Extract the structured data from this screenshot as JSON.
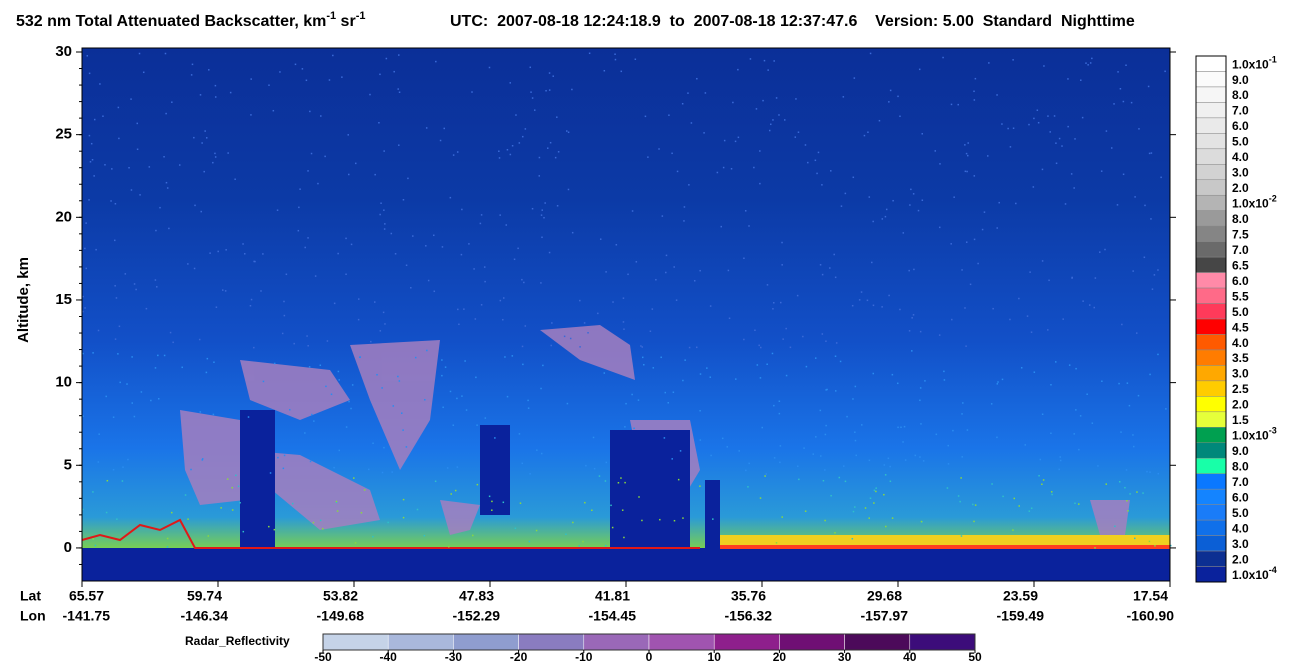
{
  "chart_data": {
    "type": "heatmap",
    "title": {
      "main": "532 nm Total Attenuated Backscatter, km",
      "sup1": "-1",
      "mid": " sr",
      "sup2": "-1"
    },
    "subtitle": "UTC:  2007-08-18 12:24:18.9  to  2007-08-18 12:37:47.6    Version: 5.00  Standard  Nighttime",
    "ylabel": "Altitude, km",
    "ylim": [
      -2,
      30
    ],
    "yticks": [
      0,
      5,
      10,
      15,
      20,
      25,
      30
    ],
    "lat_label": "Lat",
    "lon_label": "Lon",
    "lat": [
      "65.57",
      "59.74",
      "53.82",
      "47.83",
      "41.81",
      "35.76",
      "29.68",
      "23.59",
      "17.54"
    ],
    "lon": [
      "-141.75",
      "-146.34",
      "-149.68",
      "-152.29",
      "-154.45",
      "-156.32",
      "-157.97",
      "-159.49",
      "-160.90"
    ],
    "colorbar": [
      {
        "text": "1.0x10",
        "sup": "-1",
        "color": "#ffffff"
      },
      {
        "text": "9.0",
        "color": "#fbfbfb"
      },
      {
        "text": "8.0",
        "color": "#f6f6f6"
      },
      {
        "text": "7.0",
        "color": "#f0f0f0"
      },
      {
        "text": "6.0",
        "color": "#eaeaea"
      },
      {
        "text": "5.0",
        "color": "#e3e3e3"
      },
      {
        "text": "4.0",
        "color": "#dcdcdc"
      },
      {
        "text": "3.0",
        "color": "#d2d2d2"
      },
      {
        "text": "2.0",
        "color": "#c8c8c8"
      },
      {
        "text": "1.0x10",
        "sup": "-2",
        "color": "#b4b4b4"
      },
      {
        "text": "8.0",
        "color": "#9a9a9a"
      },
      {
        "text": "7.5",
        "color": "#858585"
      },
      {
        "text": "7.0",
        "color": "#6a6a6a"
      },
      {
        "text": "6.5",
        "color": "#464646"
      },
      {
        "text": "6.0",
        "color": "#ff8aa8"
      },
      {
        "text": "5.5",
        "color": "#ff6a88"
      },
      {
        "text": "5.0",
        "color": "#ff3a5a"
      },
      {
        "text": "4.5",
        "color": "#ff0000"
      },
      {
        "text": "4.0",
        "color": "#ff5a00"
      },
      {
        "text": "3.5",
        "color": "#ff7c00"
      },
      {
        "text": "3.0",
        "color": "#ffa800"
      },
      {
        "text": "2.5",
        "color": "#ffcc00"
      },
      {
        "text": "2.0",
        "color": "#ffff00"
      },
      {
        "text": "1.5",
        "color": "#e6ff3a"
      },
      {
        "text": "1.0x10",
        "sup": "-3",
        "color": "#00a050"
      },
      {
        "text": "9.0",
        "color": "#00887a"
      },
      {
        "text": "8.0",
        "color": "#18ffa8"
      },
      {
        "text": "7.0",
        "color": "#0a78ff"
      },
      {
        "text": "6.0",
        "color": "#1484ff"
      },
      {
        "text": "5.0",
        "color": "#1a7cf8"
      },
      {
        "text": "4.0",
        "color": "#1070ea"
      },
      {
        "text": "3.0",
        "color": "#0b5fd6"
      },
      {
        "text": "2.0",
        "color": "#0c2f92"
      },
      {
        "text": "1.0x10",
        "sup": "-4",
        "color": "#0a229c"
      }
    ],
    "radar_label": "Radar_Reflectivity",
    "radar_ticks": [
      -50,
      -40,
      -30,
      -20,
      -10,
      0,
      10,
      20,
      30,
      40,
      50
    ],
    "radar_colors": [
      "#c5d3e8",
      "#a9b8dc",
      "#8f9dcf",
      "#8a7cc0",
      "#9a68b8",
      "#a054b0",
      "#8e1f8c",
      "#6f0f74",
      "#4c0a5a",
      "#3c0c7a"
    ]
  }
}
